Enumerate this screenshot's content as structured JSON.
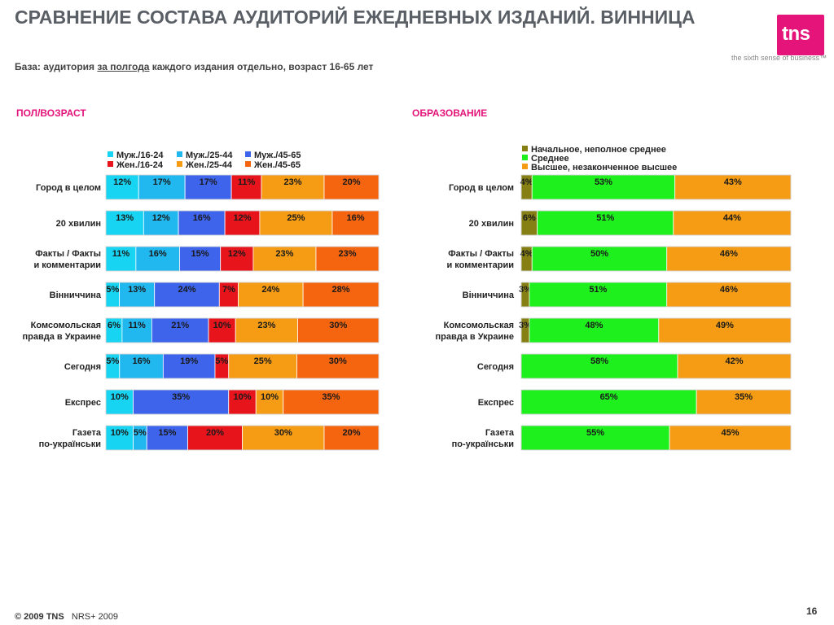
{
  "header": {
    "title": "СРАВНЕНИЕ СОСТАВА АУДИТОРИЙ ЕЖЕДНЕВНЫХ ИЗДАНИЙ. ВИННИЦА",
    "base_prefix": "База: аудитория",
    "base_underlined": "за полгода",
    "base_suffix": "каждого издания отдельно, возраст 16-65 лет"
  },
  "brand": {
    "logo_text": "tns",
    "tagline": "the sixth sense of business™",
    "color": "#e4147a"
  },
  "footer": {
    "copyright": "© 2009 TNS",
    "source": "NRS+ 2009",
    "page_number": "16"
  },
  "chart_data": [
    {
      "type": "bar",
      "orientation": "horizontal",
      "stacked": "100%",
      "title": "ПОЛ/ВОЗРАСТ",
      "categories": [
        "Город в целом",
        "20 хвилин",
        "Факты / Факты и комментарии",
        "Вінниччина",
        "Комсомольская правда в Украине",
        "Сегодня",
        "Експрес",
        "Газета по-українськи"
      ],
      "legend_position": "top",
      "series": [
        {
          "name": "Муж./16-24",
          "color": "#17d4f2",
          "values": [
            12,
            13,
            11,
            5,
            6,
            5,
            10,
            10
          ]
        },
        {
          "name": "Муж./25-44",
          "color": "#21b8f0",
          "values": [
            17,
            12,
            16,
            13,
            11,
            16,
            0,
            5
          ]
        },
        {
          "name": "Муж./45-65",
          "color": "#3e64ec",
          "values": [
            17,
            16,
            15,
            24,
            21,
            19,
            35,
            15
          ]
        },
        {
          "name": "Жен./16-24",
          "color": "#e8141c",
          "values": [
            11,
            12,
            12,
            7,
            10,
            5,
            10,
            20
          ]
        },
        {
          "name": "Жен./25-44",
          "color": "#f59c14",
          "values": [
            23,
            25,
            23,
            24,
            23,
            25,
            10,
            30
          ]
        },
        {
          "name": "Жен./45-65",
          "color": "#f5640f",
          "values": [
            20,
            16,
            23,
            28,
            30,
            30,
            35,
            20
          ]
        }
      ],
      "labels": [
        [
          "12%",
          "17%",
          "17%",
          "11%",
          "23%",
          "20%"
        ],
        [
          "13%",
          "12%",
          "16%",
          "12%",
          "25%",
          "16%"
        ],
        [
          "11%",
          "16%",
          "15%",
          "12%",
          "23%",
          "23%"
        ],
        [
          "5%",
          "13%",
          "24%",
          "7%",
          "24%",
          "28%"
        ],
        [
          "6%",
          "11%",
          "21%",
          "10%",
          "23%",
          "30%"
        ],
        [
          "5%",
          "16%",
          "19%",
          "5%",
          "25%",
          "30%"
        ],
        [
          "10%",
          "",
          "35%",
          "10%",
          "10%",
          "35%"
        ],
        [
          "10%",
          "5%",
          "15%",
          "20%",
          "30%",
          "20%"
        ]
      ]
    },
    {
      "type": "bar",
      "orientation": "horizontal",
      "stacked": "100%",
      "title": "ОБРАЗОВАНИЕ",
      "categories": [
        "Город в целом",
        "20 хвилин",
        "Факты / Факты и комментарии",
        "Вінниччина",
        "Комсомольская правда в Украине",
        "Сегодня",
        "Експрес",
        "Газета по-українськи"
      ],
      "legend_position": "top",
      "series": [
        {
          "name": "Начальное, неполное среднее",
          "color": "#857f14",
          "values": [
            4,
            6,
            4,
            3,
            3,
            0,
            0,
            0
          ]
        },
        {
          "name": "Среднее",
          "color": "#1ef01e",
          "values": [
            53,
            51,
            50,
            51,
            48,
            58,
            65,
            55
          ]
        },
        {
          "name": "Высшее, незаконченное высшее",
          "color": "#f59c14",
          "values": [
            43,
            44,
            46,
            46,
            49,
            42,
            35,
            45
          ]
        }
      ],
      "labels": [
        [
          "4%",
          "53%",
          "43%"
        ],
        [
          "6%",
          "51%",
          "44%"
        ],
        [
          "4%",
          "50%",
          "46%"
        ],
        [
          "3%",
          "51%",
          "46%"
        ],
        [
          "3%",
          "48%",
          "49%"
        ],
        [
          "",
          "58%",
          "42%"
        ],
        [
          "",
          "65%",
          "35%"
        ],
        [
          "",
          "55%",
          "45%"
        ]
      ]
    }
  ]
}
